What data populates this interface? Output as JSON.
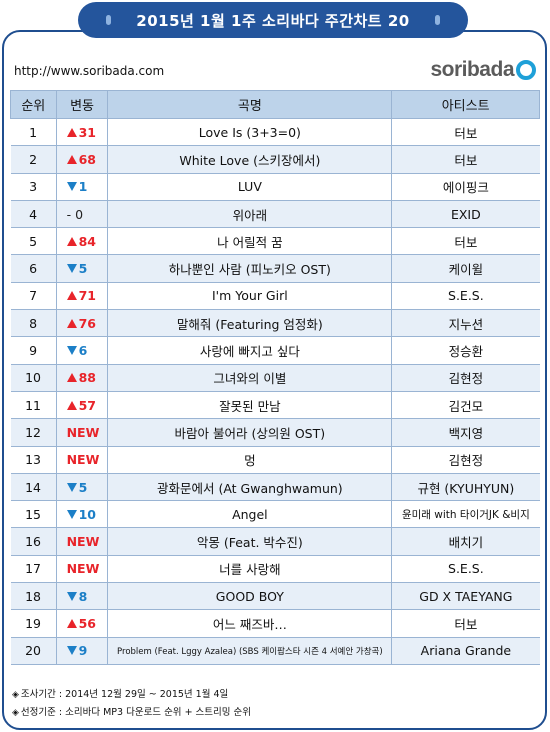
{
  "header": {
    "title": "2015년  1월  1주 소리바다 주간차트 20"
  },
  "url": "http://www.soribada.com",
  "logo": {
    "text": "soribada",
    "color": "#1ea0d8"
  },
  "colors": {
    "header_bg": "#24559c",
    "table_header_bg": "#bdd3ea",
    "row_alt_bg": "#e7eff8",
    "up": "#e8242a",
    "down": "#1c7fc7"
  },
  "columns": {
    "rank": "순위",
    "change": "변동",
    "song": "곡명",
    "artist": "아티스트"
  },
  "rows": [
    {
      "rank": "1",
      "dir": "up",
      "change": "31",
      "song": "Love Is (3+3=0)",
      "artist": "터보"
    },
    {
      "rank": "2",
      "dir": "up",
      "change": "68",
      "song": "White Love (스키장에서)",
      "artist": "터보"
    },
    {
      "rank": "3",
      "dir": "down",
      "change": "1",
      "song": "LUV",
      "artist": "에이핑크"
    },
    {
      "rank": "4",
      "dir": "same",
      "change": "- 0",
      "song": "위아래",
      "artist": "EXID"
    },
    {
      "rank": "5",
      "dir": "up",
      "change": "84",
      "song": "나 어릴적 꿈",
      "artist": "터보"
    },
    {
      "rank": "6",
      "dir": "down",
      "change": "5",
      "song": "하나뿐인 사람 (피노키오 OST)",
      "artist": "케이윌"
    },
    {
      "rank": "7",
      "dir": "up",
      "change": "71",
      "song": "I'm Your Girl",
      "artist": "S.E.S."
    },
    {
      "rank": "8",
      "dir": "up",
      "change": "76",
      "song": "말해줘 (Featuring 엄정화)",
      "artist": "지누션"
    },
    {
      "rank": "9",
      "dir": "down",
      "change": "6",
      "song": "사랑에 빠지고 싶다",
      "artist": "정승환"
    },
    {
      "rank": "10",
      "dir": "up",
      "change": "88",
      "song": "그녀와의 이별",
      "artist": "김현정"
    },
    {
      "rank": "11",
      "dir": "up",
      "change": "57",
      "song": "잘못된 만남",
      "artist": "김건모"
    },
    {
      "rank": "12",
      "dir": "new",
      "change": "NEW",
      "song": "바람아 불어라 (상의원 OST)",
      "artist": "백지영"
    },
    {
      "rank": "13",
      "dir": "new",
      "change": "NEW",
      "song": "멍",
      "artist": "김현정"
    },
    {
      "rank": "14",
      "dir": "down",
      "change": "5",
      "song": "광화문에서 (At Gwanghwamun)",
      "artist": "규현 (KYUHYUN)"
    },
    {
      "rank": "15",
      "dir": "down",
      "change": "10",
      "song": "Angel",
      "artist": "윤미래 with 타이거JK &비지"
    },
    {
      "rank": "16",
      "dir": "new",
      "change": "NEW",
      "song": "악몽 (Feat. 박수진)",
      "artist": "배치기"
    },
    {
      "rank": "17",
      "dir": "new",
      "change": "NEW",
      "song": "너를 사랑해",
      "artist": "S.E.S."
    },
    {
      "rank": "18",
      "dir": "down",
      "change": "8",
      "song": "GOOD BOY",
      "artist": "GD X TAEYANG"
    },
    {
      "rank": "19",
      "dir": "up",
      "change": "56",
      "song": "어느 째즈바…",
      "artist": "터보"
    },
    {
      "rank": "20",
      "dir": "down",
      "change": "9",
      "song": "Problem (Feat. Lggy Azalea) (SBS 케이팝스타 시즌 4 서예안 가창곡)",
      "artist": "Ariana Grande"
    }
  ],
  "footer": {
    "period": "조사기간 : 2014년 12월  29일 ~ 2015년 1월 4일",
    "criteria": "선정기준 : 소리바다 MP3 다운로드 순위 + 스트리밍 순위"
  }
}
